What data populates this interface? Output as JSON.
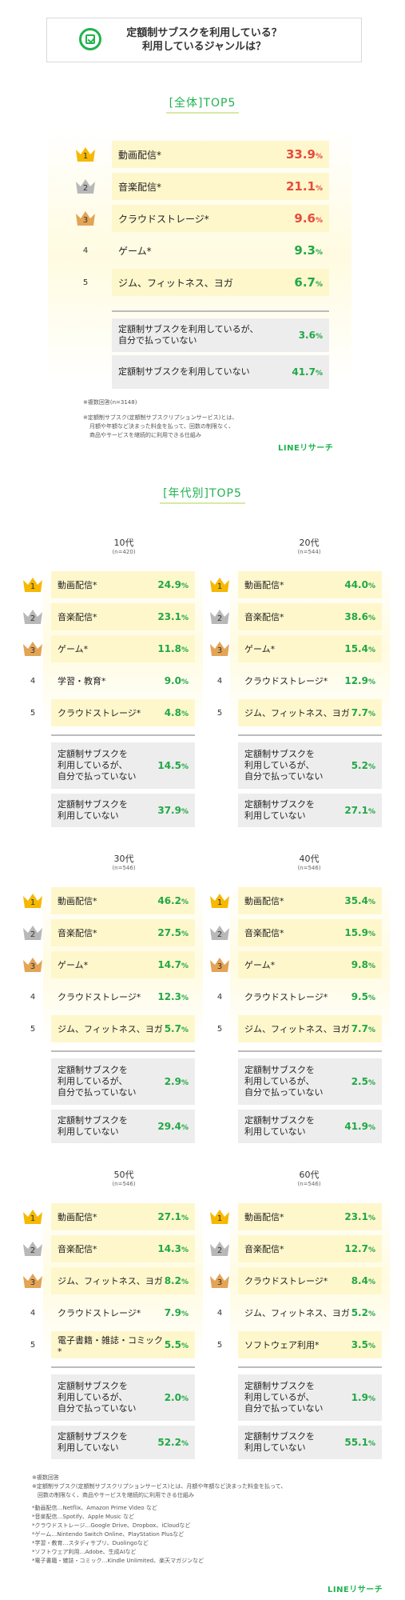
{
  "header": {
    "line1": "定額制サブスクを利用している？",
    "line2": "利用しているジャンルは？"
  },
  "overall": {
    "title": "[全体]TOP5",
    "rows": [
      {
        "rank": "1",
        "label": "動画配信*",
        "value": "33.9",
        "color": "red"
      },
      {
        "rank": "2",
        "label": "音楽配信*",
        "value": "21.1",
        "color": "red"
      },
      {
        "rank": "3",
        "label": "クラウドストレージ*",
        "value": "9.6",
        "color": "red"
      },
      {
        "rank": "4",
        "label": "ゲーム*",
        "value": "9.3",
        "color": "green"
      },
      {
        "rank": "5",
        "label": "ジム、フィットネス、ヨガ",
        "value": "6.7",
        "color": "green"
      }
    ],
    "extra": [
      {
        "label1": "定額制サブスクを利用しているが、",
        "label2": "自分で払っていない",
        "value": "3.6"
      },
      {
        "label1": "定額制サブスクを利用していない",
        "label2": "",
        "value": "41.7"
      }
    ],
    "notes": [
      "※複数回答(n=3148)",
      "※定額制サブスク(定額制サブスクリプションサービス)とは、",
      "月額や年額など決まった料金を払って、回数の制限なく、",
      "商品やサービスを継続的に利用できる仕組み"
    ],
    "brand": "LINEリサーチ"
  },
  "by_age": {
    "title": "[年代別]TOP5",
    "groups": [
      {
        "age": "10代",
        "n": "(n=420)",
        "rows": [
          {
            "label": "動画配信*",
            "value": "24.9"
          },
          {
            "label": "音楽配信*",
            "value": "23.1"
          },
          {
            "label": "ゲーム*",
            "value": "11.8"
          },
          {
            "label": "学習・教育*",
            "value": "9.0"
          },
          {
            "label": "クラウドストレージ*",
            "value": "4.8"
          }
        ],
        "extra": [
          {
            "l1": "定額制サブスクを",
            "l2": "利用しているが、",
            "l3": "自分で払っていない",
            "value": "14.5"
          },
          {
            "l1": "定額制サブスクを",
            "l2": "利用していない",
            "l3": "",
            "value": "37.9"
          }
        ]
      },
      {
        "age": "20代",
        "n": "(n=544)",
        "rows": [
          {
            "label": "動画配信*",
            "value": "44.0"
          },
          {
            "label": "音楽配信*",
            "value": "38.6"
          },
          {
            "label": "ゲーム*",
            "value": "15.4"
          },
          {
            "label": "クラウドストレージ*",
            "value": "12.9"
          },
          {
            "label": "ジム、フィットネス、ヨガ",
            "value": "7.7"
          }
        ],
        "extra": [
          {
            "l1": "定額制サブスクを",
            "l2": "利用しているが、",
            "l3": "自分で払っていない",
            "value": "5.2"
          },
          {
            "l1": "定額制サブスクを",
            "l2": "利用していない",
            "l3": "",
            "value": "27.1"
          }
        ]
      },
      {
        "age": "30代",
        "n": "(n=546)",
        "rows": [
          {
            "label": "動画配信*",
            "value": "46.2"
          },
          {
            "label": "音楽配信*",
            "value": "27.5"
          },
          {
            "label": "ゲーム*",
            "value": "14.7"
          },
          {
            "label": "クラウドストレージ*",
            "value": "12.3"
          },
          {
            "label": "ジム、フィットネス、ヨガ",
            "value": "5.7"
          }
        ],
        "extra": [
          {
            "l1": "定額制サブスクを",
            "l2": "利用しているが、",
            "l3": "自分で払っていない",
            "value": "2.9"
          },
          {
            "l1": "定額制サブスクを",
            "l2": "利用していない",
            "l3": "",
            "value": "29.4"
          }
        ]
      },
      {
        "age": "40代",
        "n": "(n=546)",
        "rows": [
          {
            "label": "動画配信*",
            "value": "35.4"
          },
          {
            "label": "音楽配信*",
            "value": "15.9"
          },
          {
            "label": "ゲーム*",
            "value": "9.8"
          },
          {
            "label": "クラウドストレージ*",
            "value": "9.5"
          },
          {
            "label": "ジム、フィットネス、ヨガ",
            "value": "7.7"
          }
        ],
        "extra": [
          {
            "l1": "定額制サブスクを",
            "l2": "利用しているが、",
            "l3": "自分で払っていない",
            "value": "2.5"
          },
          {
            "l1": "定額制サブスクを",
            "l2": "利用していない",
            "l3": "",
            "value": "41.9"
          }
        ]
      },
      {
        "age": "50代",
        "n": "(n=546)",
        "rows": [
          {
            "label": "動画配信*",
            "value": "27.1"
          },
          {
            "label": "音楽配信*",
            "value": "14.3"
          },
          {
            "label": "ジム、フィットネス、ヨガ",
            "value": "8.2"
          },
          {
            "label": "クラウドストレージ*",
            "value": "7.9"
          },
          {
            "label": "電子書籍・雑誌・コミック*",
            "value": "5.5"
          }
        ],
        "extra": [
          {
            "l1": "定額制サブスクを",
            "l2": "利用しているが、",
            "l3": "自分で払っていない",
            "value": "2.0"
          },
          {
            "l1": "定額制サブスクを",
            "l2": "利用していない",
            "l3": "",
            "value": "52.2"
          }
        ]
      },
      {
        "age": "60代",
        "n": "(n=546)",
        "rows": [
          {
            "label": "動画配信*",
            "value": "23.1"
          },
          {
            "label": "音楽配信*",
            "value": "12.7"
          },
          {
            "label": "クラウドストレージ*",
            "value": "8.4"
          },
          {
            "label": "ジム、フィットネス、ヨガ",
            "value": "5.2"
          },
          {
            "label": "ソフトウェア利用*",
            "value": "3.5"
          }
        ],
        "extra": [
          {
            "l1": "定額制サブスクを",
            "l2": "利用しているが、",
            "l3": "自分で払っていない",
            "value": "1.9"
          },
          {
            "l1": "定額制サブスクを",
            "l2": "利用していない",
            "l3": "",
            "value": "55.1"
          }
        ]
      }
    ]
  },
  "footer": {
    "notes": [
      "※複数回答",
      "※定額制サブスク(定額制サブスクリプションサービス)とは、月額や年額など決まった料金を払って、",
      "　回数の制限なく、商品やサービスを継続的に利用できる仕組み",
      "",
      "*動画配信…Netflix、Amazon Prime Video など",
      "*音楽配信…Spotify、Apple Music など",
      "*クラウドストレージ…Google Drive、Dropbox、iCloudなど",
      "*ゲーム…Nintendo Switch Online、PlayStation Plusなど",
      "*学習・教育…スタディサプリ、Duolingoなど",
      "*ソフトウェア利用…Adobe、生成AIなど",
      "*電子書籍・雑誌・コミック…Kindle Unlimited、楽天マガジンなど"
    ],
    "brand": "LINEリサーチ"
  },
  "chart_data": {
    "type": "table",
    "unit": "%",
    "overall": {
      "categories": [
        "動画配信*",
        "音楽配信*",
        "クラウドストレージ*",
        "ゲーム*",
        "ジム、フィットネス、ヨガ",
        "定額制サブスクを利用しているが、自分で払っていない",
        "定額制サブスクを利用していない"
      ],
      "values": [
        33.9,
        21.1,
        9.6,
        9.3,
        6.7,
        3.6,
        41.7
      ]
    },
    "by_age": [
      {
        "age": "10代",
        "categories": [
          "動画配信*",
          "音楽配信*",
          "ゲーム*",
          "学習・教育*",
          "クラウドストレージ*"
        ],
        "values": [
          24.9,
          23.1,
          11.8,
          9.0,
          4.8
        ],
        "not_paying": 14.5,
        "not_using": 37.9
      },
      {
        "age": "20代",
        "categories": [
          "動画配信*",
          "音楽配信*",
          "ゲーム*",
          "クラウドストレージ*",
          "ジム、フィットネス、ヨガ"
        ],
        "values": [
          44.0,
          38.6,
          15.4,
          12.9,
          7.7
        ],
        "not_paying": 5.2,
        "not_using": 27.1
      },
      {
        "age": "30代",
        "categories": [
          "動画配信*",
          "音楽配信*",
          "ゲーム*",
          "クラウドストレージ*",
          "ジム、フィットネス、ヨガ"
        ],
        "values": [
          46.2,
          27.5,
          14.7,
          12.3,
          5.7
        ],
        "not_paying": 2.9,
        "not_using": 29.4
      },
      {
        "age": "40代",
        "categories": [
          "動画配信*",
          "音楽配信*",
          "ゲーム*",
          "クラウドストレージ*",
          "ジム、フィットネス、ヨガ"
        ],
        "values": [
          35.4,
          15.9,
          9.8,
          9.5,
          7.7
        ],
        "not_paying": 2.5,
        "not_using": 41.9
      },
      {
        "age": "50代",
        "categories": [
          "動画配信*",
          "音楽配信*",
          "ジム、フィットネス、ヨガ",
          "クラウドストレージ*",
          "電子書籍・雑誌・コミック*"
        ],
        "values": [
          27.1,
          14.3,
          8.2,
          7.9,
          5.5
        ],
        "not_paying": 2.0,
        "not_using": 52.2
      },
      {
        "age": "60代",
        "categories": [
          "動画配信*",
          "音楽配信*",
          "クラウドストレージ*",
          "ジム、フィットネス、ヨガ",
          "ソフトウェア利用*"
        ],
        "values": [
          23.1,
          12.7,
          8.4,
          5.2,
          3.5
        ],
        "not_paying": 1.9,
        "not_using": 55.1
      }
    ]
  }
}
